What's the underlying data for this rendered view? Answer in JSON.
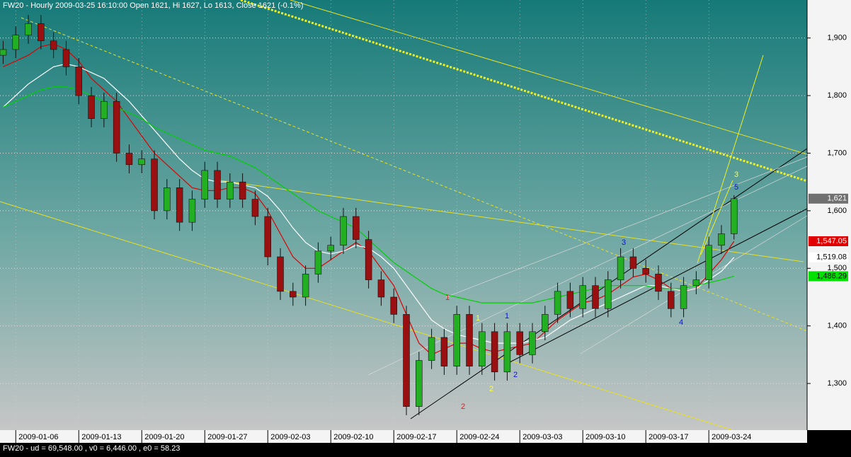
{
  "chart_data": {
    "type": "candlestick",
    "title": "FW20 - Hourly 2009-03-25 16:10:00 Open 1621, Hi 1627, Lo 1613, Close 1621 (-0.1%)",
    "footer": "FW20 - ud = 69,548.00 , v0 = 6,446.00 , e0 = 58.23",
    "up_color": "#22b022",
    "down_color": "#9a1010",
    "open": [
      1870,
      1880,
      1905,
      1925,
      1895,
      1880,
      1850,
      1800,
      1760,
      1790,
      1700,
      1680,
      1690,
      1600,
      1640,
      1580,
      1620,
      1670,
      1620,
      1650,
      1620,
      1590,
      1520,
      1460,
      1450,
      1490,
      1530,
      1540,
      1590,
      1550,
      1480,
      1450,
      1420,
      1260,
      1340,
      1380,
      1330,
      1420,
      1330,
      1390,
      1320,
      1390,
      1350,
      1390,
      1420,
      1460,
      1430,
      1470,
      1430,
      1480,
      1520,
      1500,
      1490,
      1460,
      1430,
      1470,
      1480,
      1540,
      1560
    ],
    "high": [
      1895,
      1920,
      1940,
      1940,
      1910,
      1895,
      1865,
      1815,
      1805,
      1805,
      1715,
      1705,
      1705,
      1655,
      1655,
      1635,
      1685,
      1685,
      1665,
      1665,
      1635,
      1605,
      1535,
      1475,
      1505,
      1545,
      1555,
      1605,
      1605,
      1565,
      1495,
      1465,
      1435,
      1355,
      1395,
      1395,
      1435,
      1435,
      1405,
      1405,
      1405,
      1405,
      1405,
      1435,
      1475,
      1475,
      1485,
      1485,
      1495,
      1535,
      1535,
      1515,
      1505,
      1475,
      1485,
      1495,
      1555,
      1575,
      1627
    ],
    "low": [
      1855,
      1865,
      1890,
      1880,
      1865,
      1835,
      1785,
      1745,
      1745,
      1685,
      1665,
      1665,
      1585,
      1585,
      1565,
      1565,
      1605,
      1605,
      1605,
      1605,
      1575,
      1505,
      1445,
      1435,
      1435,
      1475,
      1515,
      1525,
      1535,
      1465,
      1435,
      1405,
      1245,
      1245,
      1325,
      1315,
      1315,
      1315,
      1315,
      1305,
      1305,
      1335,
      1335,
      1375,
      1405,
      1415,
      1415,
      1415,
      1415,
      1465,
      1485,
      1475,
      1445,
      1415,
      1415,
      1455,
      1465,
      1525,
      1550
    ],
    "close": [
      1880,
      1905,
      1925,
      1895,
      1880,
      1850,
      1800,
      1760,
      1790,
      1700,
      1680,
      1690,
      1600,
      1640,
      1580,
      1620,
      1670,
      1620,
      1650,
      1620,
      1590,
      1520,
      1460,
      1450,
      1490,
      1530,
      1540,
      1590,
      1550,
      1480,
      1450,
      1420,
      1260,
      1340,
      1380,
      1330,
      1420,
      1330,
      1390,
      1320,
      1390,
      1350,
      1390,
      1420,
      1460,
      1430,
      1470,
      1430,
      1480,
      1520,
      1500,
      1490,
      1460,
      1430,
      1470,
      1480,
      1540,
      1560,
      1621
    ],
    "close_label": "1,621",
    "series": [
      {
        "color": "#e00000",
        "last_label": "1,547.05",
        "values": [
          1850,
          1860,
          1870,
          1885,
          1890,
          1880,
          1860,
          1830,
          1810,
          1790,
          1760,
          1730,
          1700,
          1680,
          1660,
          1640,
          1635,
          1635,
          1640,
          1640,
          1630,
          1600,
          1560,
          1520,
          1500,
          1500,
          1515,
          1530,
          1545,
          1530,
          1500,
          1470,
          1420,
          1370,
          1350,
          1360,
          1370,
          1370,
          1360,
          1355,
          1360,
          1365,
          1370,
          1390,
          1410,
          1425,
          1440,
          1445,
          1455,
          1470,
          1485,
          1490,
          1480,
          1465,
          1460,
          1465,
          1490,
          1515,
          1547.05
        ]
      },
      {
        "color": "#ffffff",
        "last_label": "1,519.08",
        "values": [
          1780,
          1800,
          1820,
          1835,
          1850,
          1855,
          1850,
          1840,
          1830,
          1810,
          1790,
          1765,
          1740,
          1715,
          1690,
          1670,
          1655,
          1650,
          1650,
          1645,
          1640,
          1625,
          1600,
          1570,
          1545,
          1530,
          1525,
          1530,
          1540,
          1535,
          1520,
          1500,
          1470,
          1440,
          1410,
          1395,
          1385,
          1380,
          1375,
          1370,
          1370,
          1370,
          1375,
          1380,
          1395,
          1410,
          1420,
          1430,
          1440,
          1450,
          1460,
          1470,
          1470,
          1465,
          1460,
          1465,
          1480,
          1495,
          1519.08
        ]
      },
      {
        "color": "#00d000",
        "last_label": "1,486.29",
        "values": [
          1780,
          1790,
          1800,
          1810,
          1815,
          1815,
          1810,
          1800,
          1790,
          1780,
          1770,
          1760,
          1745,
          1735,
          1725,
          1715,
          1705,
          1700,
          1695,
          1685,
          1675,
          1660,
          1645,
          1630,
          1615,
          1600,
          1590,
          1580,
          1570,
          1550,
          1530,
          1510,
          1495,
          1480,
          1465,
          1455,
          1450,
          1445,
          1440,
          1440,
          1440,
          1440,
          1440,
          1445,
          1450,
          1455,
          1460,
          1465,
          1470,
          1470,
          1470,
          1470,
          1465,
          1465,
          1465,
          1470,
          1475,
          1480,
          1486.29
        ]
      }
    ],
    "xlim": [
      -0.25,
      63.8
    ],
    "xticks": [
      {
        "value": 1,
        "label": "2009-01-06"
      },
      {
        "value": 6,
        "label": "2009-01-13"
      },
      {
        "value": 11,
        "label": "2009-01-20"
      },
      {
        "value": 16,
        "label": "2009-01-27"
      },
      {
        "value": 21,
        "label": "2009-02-03"
      },
      {
        "value": 26,
        "label": "2009-02-10"
      },
      {
        "value": 31,
        "label": "2009-02-17"
      },
      {
        "value": 36,
        "label": "2009-02-24"
      },
      {
        "value": 41,
        "label": "2009-03-03"
      },
      {
        "value": 46,
        "label": "2009-03-10"
      },
      {
        "value": 51,
        "label": "2009-03-17"
      },
      {
        "value": 56,
        "label": "2009-03-24"
      }
    ],
    "ylim": [
      1219,
      1966
    ],
    "yticks": [
      {
        "value": 1300,
        "label": "1,300"
      },
      {
        "value": 1400,
        "label": "1,400"
      },
      {
        "value": 1500,
        "label": "1,500"
      },
      {
        "value": 1600,
        "label": "1,600"
      },
      {
        "value": 1700,
        "label": "1,700"
      },
      {
        "value": 1800,
        "label": "1,800"
      },
      {
        "value": 1900,
        "label": "1,900"
      }
    ],
    "grid": true,
    "annotations": [
      {
        "text": "1",
        "color": "#e02020"
      },
      {
        "text": "1",
        "color": "#ffff40"
      },
      {
        "text": "1",
        "color": "#1010e0"
      },
      {
        "text": "2",
        "color": "#ffff40"
      },
      {
        "text": "2",
        "color": "#1010e0"
      },
      {
        "text": "2",
        "color": "#e02020"
      },
      {
        "text": "3",
        "color": "#1010e0"
      },
      {
        "text": "4",
        "color": "#1010e0"
      },
      {
        "text": "3",
        "color": "#ffff40"
      },
      {
        "text": "5",
        "color": "#1010e0"
      }
    ]
  }
}
